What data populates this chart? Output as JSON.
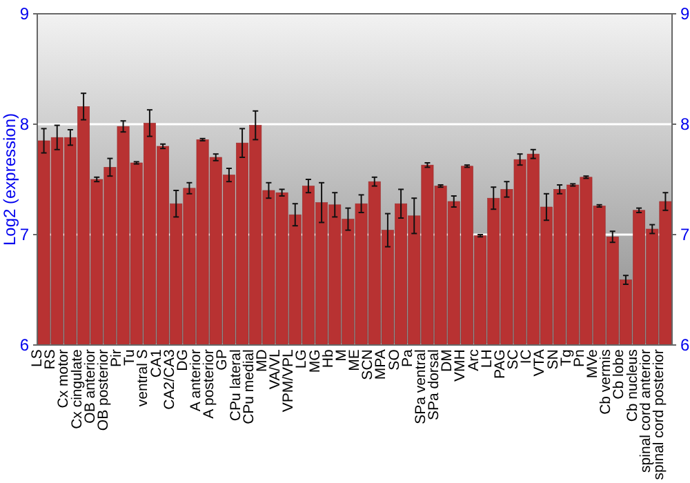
{
  "chart_data": {
    "type": "bar",
    "ylabel": "Log2 (expression)",
    "categories": [
      "LS",
      "RS",
      "Cx motor",
      "Cx cingulate",
      "OB anterior",
      "OB posterior",
      "Pir",
      "Tu",
      "ventral S",
      "CA1",
      "CA2/CA3",
      "DG",
      "A anterior",
      "A posterior",
      "GP",
      "CPu lateral",
      "CPu medial",
      "MD",
      "VA/VL",
      "VPM/VPL",
      "LG",
      "MG",
      "Hb",
      "M",
      "ME",
      "SCN",
      "MPA",
      "SO",
      "Pa",
      "SPa ventral",
      "SPa dorsal",
      "DM",
      "VMH",
      "Arc",
      "LH",
      "PAG",
      "SC",
      "IC",
      "VTA",
      "SN",
      "Tg",
      "Pn",
      "MVe",
      "Cb vermis",
      "Cb lobe",
      "Cb nucleus",
      "spinal cord anterior",
      "spinal cord posterior"
    ],
    "values": [
      7.85,
      7.88,
      7.88,
      8.16,
      7.5,
      7.61,
      7.98,
      7.65,
      8.01,
      7.8,
      7.28,
      7.42,
      7.86,
      7.7,
      7.54,
      7.83,
      7.99,
      7.4,
      7.38,
      7.18,
      7.44,
      7.29,
      7.27,
      7.14,
      7.28,
      7.48,
      7.04,
      7.28,
      7.17,
      7.63,
      7.44,
      7.3,
      7.62,
      6.99,
      7.33,
      7.41,
      7.68,
      7.73,
      7.25,
      7.41,
      7.45,
      7.52,
      7.26,
      6.98,
      6.59,
      7.22,
      7.05,
      7.3
    ],
    "errors": [
      0.11,
      0.11,
      0.07,
      0.12,
      0.02,
      0.08,
      0.05,
      0.01,
      0.12,
      0.02,
      0.12,
      0.05,
      0.01,
      0.03,
      0.06,
      0.13,
      0.13,
      0.07,
      0.03,
      0.1,
      0.06,
      0.18,
      0.11,
      0.1,
      0.08,
      0.04,
      0.15,
      0.13,
      0.16,
      0.02,
      0.01,
      0.05,
      0.01,
      0.01,
      0.1,
      0.07,
      0.05,
      0.04,
      0.12,
      0.04,
      0.01,
      0.01,
      0.01,
      0.05,
      0.04,
      0.02,
      0.04,
      0.08
    ],
    "color": "#b83232",
    "ylim": [
      6,
      9
    ],
    "yticks": [
      6,
      7,
      8,
      9
    ],
    "y2lim": [
      6,
      9
    ],
    "y2ticks": [
      6,
      7,
      8,
      9
    ],
    "grid": "y"
  }
}
